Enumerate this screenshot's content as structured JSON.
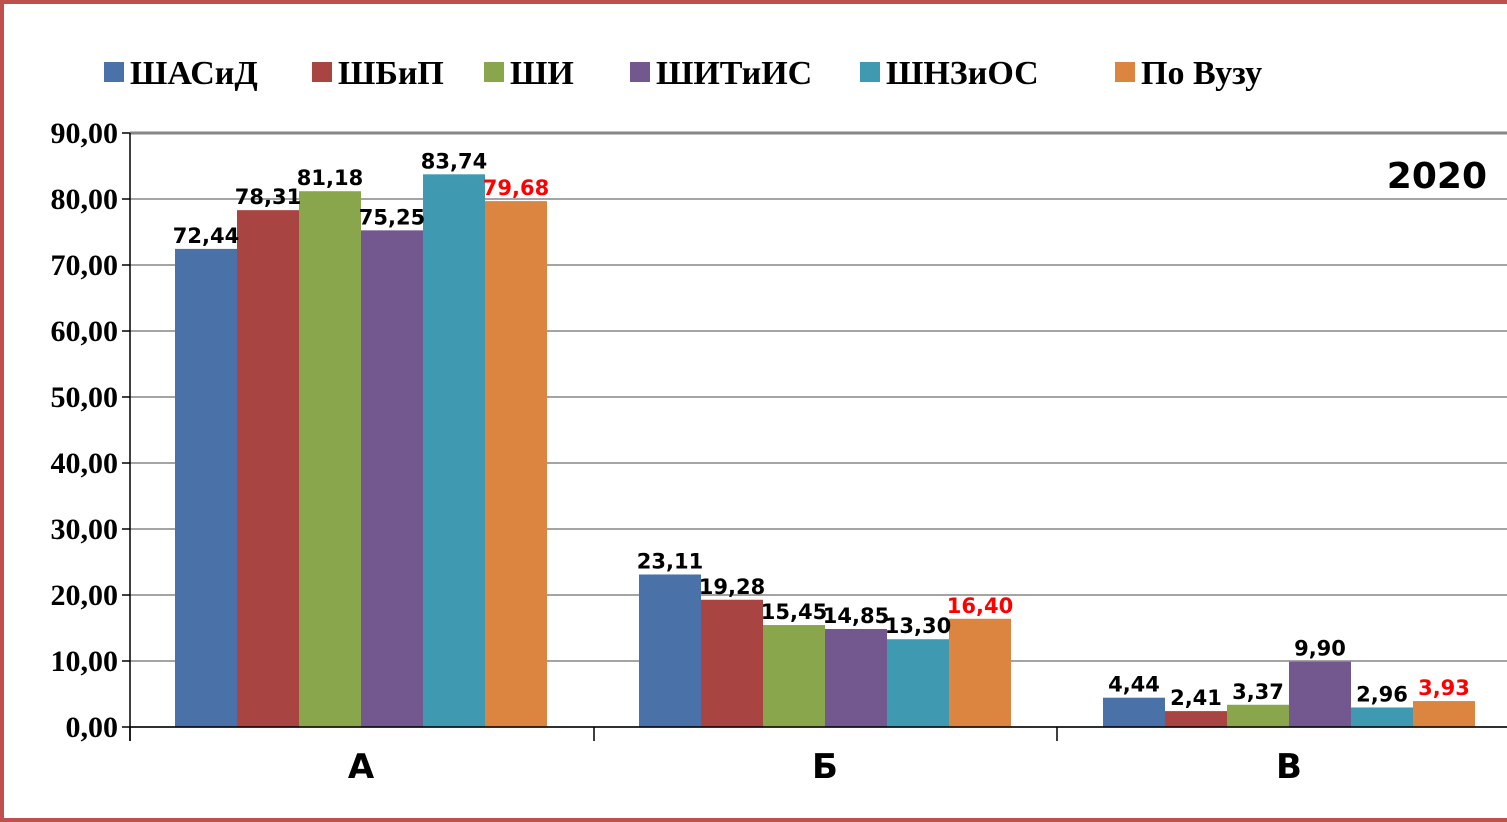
{
  "chart_data": {
    "type": "bar",
    "title": "",
    "annotation": "2020",
    "categories": [
      "А",
      "Б",
      "В"
    ],
    "series": [
      {
        "name": "ШАСиД",
        "color": "#4a72a8",
        "values": [
          72.44,
          23.11,
          4.44
        ],
        "labels": [
          "72,44",
          "23,11",
          "4,44"
        ]
      },
      {
        "name": "ШБиП",
        "color": "#a84542",
        "values": [
          78.31,
          19.28,
          2.41
        ],
        "labels": [
          "78,31",
          "19,28",
          "2,41"
        ]
      },
      {
        "name": "ШИ",
        "color": "#8aa64d",
        "values": [
          81.18,
          15.45,
          3.37
        ],
        "labels": [
          "81,18",
          "15,45",
          "3,37"
        ]
      },
      {
        "name": "ШИТиИС",
        "color": "#735890",
        "values": [
          75.25,
          14.85,
          9.9
        ],
        "labels": [
          "75,25",
          "14,85",
          "9,90"
        ]
      },
      {
        "name": "ШНЗиОС",
        "color": "#3f99b1",
        "values": [
          83.74,
          13.3,
          2.96
        ],
        "labels": [
          "83,74",
          "13,30",
          "2,96"
        ]
      },
      {
        "name": "По Вузу",
        "color": "#db8540",
        "values": [
          79.68,
          16.4,
          3.93
        ],
        "labels": [
          "79,68",
          "16,40",
          "3,93"
        ],
        "label_color": "#ff0000"
      }
    ],
    "ylim": [
      0,
      90
    ],
    "y_ticks": [
      "0,00",
      "10,00",
      "20,00",
      "30,00",
      "40,00",
      "50,00",
      "60,00",
      "70,00",
      "80,00",
      "90,00"
    ],
    "grid": true,
    "legend_position": "top"
  },
  "colors": {
    "frame": "#c0504d",
    "grid": "#868686"
  }
}
